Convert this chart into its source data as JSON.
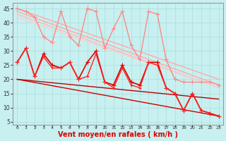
{
  "background_color": "#c8f0f0",
  "grid_color": "#aadddd",
  "xlabel": "Vent moyen/en rafales ( km/h )",
  "xlabel_color": "#dd0000",
  "xlabel_fontsize": 7,
  "ylabel_ticks": [
    5,
    10,
    15,
    20,
    25,
    30,
    35,
    40,
    45
  ],
  "xlim": [
    -0.5,
    23.5
  ],
  "ylim": [
    4,
    47
  ],
  "xtick_labels": [
    "0",
    "1",
    "2",
    "3",
    "4",
    "5",
    "6",
    "7",
    "8",
    "9",
    "10",
    "11",
    "12",
    "13",
    "14",
    "15",
    "16",
    "17",
    "18",
    "19",
    "20",
    "21",
    "22",
    "23"
  ],
  "lines": [
    {
      "x": [
        0,
        23
      ],
      "y": [
        45,
        20
      ],
      "color": "#ffaaaa",
      "linewidth": 1.0,
      "marker": null,
      "linestyle": "-"
    },
    {
      "x": [
        0,
        23
      ],
      "y": [
        44,
        18
      ],
      "color": "#ffaaaa",
      "linewidth": 1.0,
      "marker": null,
      "linestyle": "-"
    },
    {
      "x": [
        0,
        23
      ],
      "y": [
        43,
        17
      ],
      "color": "#ffbbbb",
      "linewidth": 1.0,
      "marker": null,
      "linestyle": "-"
    },
    {
      "x": [
        0,
        23
      ],
      "y": [
        42,
        17
      ],
      "color": "#ffcccc",
      "linewidth": 1.0,
      "marker": null,
      "linestyle": "-"
    },
    {
      "x": [
        0,
        1,
        2,
        3,
        4,
        5,
        6,
        7,
        8,
        9,
        10,
        11,
        12,
        13,
        14,
        15,
        16,
        17,
        18,
        19,
        20,
        21,
        22,
        23
      ],
      "y": [
        45,
        44,
        42,
        35,
        33,
        44,
        35,
        32,
        45,
        44,
        31,
        38,
        44,
        32,
        27,
        44,
        43,
        27,
        20,
        19,
        19,
        19,
        19,
        18
      ],
      "color": "#ff8888",
      "linewidth": 1.0,
      "marker": "+",
      "markersize": 4,
      "linestyle": "-"
    },
    {
      "x": [
        0,
        23
      ],
      "y": [
        20,
        7
      ],
      "color": "#cc0000",
      "linewidth": 1.0,
      "marker": null,
      "linestyle": "-"
    },
    {
      "x": [
        0,
        23
      ],
      "y": [
        20,
        13
      ],
      "color": "#bb0000",
      "linewidth": 1.0,
      "marker": null,
      "linestyle": "-"
    },
    {
      "x": [
        0,
        1,
        2,
        3,
        4,
        5,
        6,
        7,
        8,
        9,
        10,
        11,
        12,
        13,
        14,
        15,
        16,
        17,
        18,
        19,
        20,
        21,
        22,
        23
      ],
      "y": [
        26,
        31,
        21,
        29,
        25,
        24,
        26,
        20,
        26,
        30,
        19,
        18,
        25,
        19,
        18,
        26,
        26,
        17,
        15,
        9,
        15,
        9,
        8,
        7
      ],
      "color": "#dd0000",
      "linewidth": 1.2,
      "marker": "+",
      "markersize": 4,
      "linestyle": "-"
    },
    {
      "x": [
        0,
        1,
        2,
        3,
        4,
        5,
        6,
        7,
        8,
        9,
        10,
        11,
        12,
        13,
        14,
        15,
        16,
        17,
        18,
        19,
        20,
        21,
        22,
        23
      ],
      "y": [
        26,
        31,
        21,
        28,
        24,
        24,
        26,
        20,
        21,
        29,
        19,
        17,
        24,
        18,
        17,
        26,
        25,
        17,
        15,
        9,
        15,
        9,
        8,
        7
      ],
      "color": "#ff2222",
      "linewidth": 1.0,
      "marker": "+",
      "markersize": 3,
      "linestyle": "-"
    }
  ]
}
